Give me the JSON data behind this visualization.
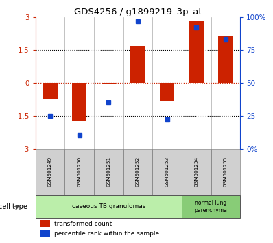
{
  "title": "GDS4256 / g1899219_3p_at",
  "samples": [
    "GSM501249",
    "GSM501250",
    "GSM501251",
    "GSM501252",
    "GSM501253",
    "GSM501254",
    "GSM501255"
  ],
  "red_bars": [
    -0.72,
    -1.72,
    -0.05,
    1.68,
    -0.82,
    2.82,
    2.12
  ],
  "blue_dots_pct": [
    25,
    10,
    35,
    97,
    22,
    92,
    83
  ],
  "ylim": [
    -3,
    3
  ],
  "yticks_left": [
    -3,
    -1.5,
    0,
    1.5,
    3
  ],
  "ytick_labels_left": [
    "-3",
    "-1.5",
    "0",
    "1.5",
    "3"
  ],
  "yticks_right_pct": [
    0,
    25,
    50,
    75,
    100
  ],
  "ytick_labels_right": [
    "0%",
    "25",
    "50",
    "75",
    "100%"
  ],
  "hlines_dotted": [
    -1.5,
    1.5
  ],
  "hline_red": 0,
  "red_color": "#cc2200",
  "blue_color": "#1144cc",
  "bar_width": 0.5,
  "group1_label": "caseous TB granulomas",
  "group1_color": "#bbeeaa",
  "group1_samples": 5,
  "group2_label": "normal lung\nparenchyma",
  "group2_color": "#88cc77",
  "group2_samples": 2,
  "legend_red": "transformed count",
  "legend_blue": "percentile rank within the sample"
}
